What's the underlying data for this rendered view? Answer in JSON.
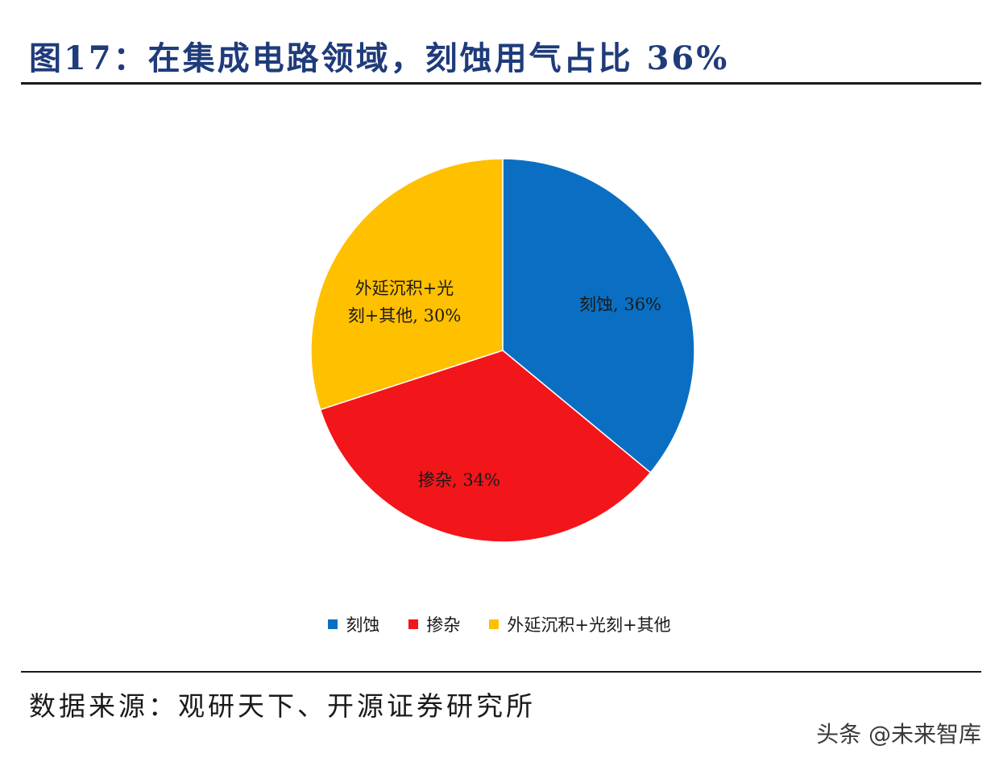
{
  "title": "图17：在集成电路领域，刻蚀用气占比 36%",
  "source": "数据来源：观研天下、开源证券研究所",
  "watermark": "头条 @未来智库",
  "chart_data": {
    "type": "pie",
    "slices": [
      {
        "name": "刻蚀",
        "value": 36,
        "color": "#0a6fc2",
        "label_lines": [
          "刻蚀, 36%"
        ]
      },
      {
        "name": "掺杂",
        "value": 34,
        "color": "#f2151a",
        "label_lines": [
          "掺杂, 34%"
        ]
      },
      {
        "name": "外延沉积+光刻+其他",
        "value": 30,
        "color": "#ffc000",
        "label_lines": [
          "外延沉积+光",
          "刻+其他, 30%"
        ]
      }
    ],
    "legend_position": "bottom"
  }
}
